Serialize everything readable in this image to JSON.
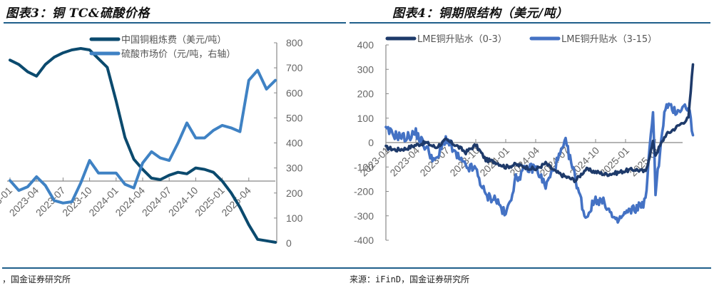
{
  "left": {
    "title": "图表3：铜 TC&硫酸价格",
    "source": "，国金证券研究所",
    "legend": [
      {
        "label": "中国铜粗炼费（美元/吨）",
        "color": "#0b4a6e"
      },
      {
        "label": "硫酸市场价（元/吨，右轴）",
        "color": "#3f82c4"
      }
    ]
  },
  "right": {
    "title": "图表4：铜期限结构（美元/吨）",
    "source": "来源：iFinD，国金证券研究所",
    "legend": [
      {
        "label": "LME铜升贴水（0-3）",
        "color": "#1e3a6a"
      },
      {
        "label": "LME铜升贴水（3-15）",
        "color": "#4472c4"
      }
    ]
  },
  "chart_data": [
    {
      "type": "line",
      "title": "图表3：铜 TC&硫酸价格",
      "xlabel": "",
      "categories": [
        "2023-01",
        "2023-04",
        "2023-07",
        "2023-10",
        "2024-01",
        "2024-04",
        "2024-07",
        "2024-10",
        "2025-01",
        "2025-04"
      ],
      "x_tick_labels": [
        "2023-01",
        "2023-04",
        "2023-07",
        "2023-10",
        "2024-01",
        "2024-04",
        "2024-07",
        "2024-10",
        "2025-01",
        "2025-04"
      ],
      "y2_ticks": [
        0,
        100,
        200,
        300,
        400,
        500,
        600,
        700,
        800
      ],
      "y2label": "元/吨",
      "y2lim": [
        0,
        800
      ],
      "ylim": [
        -45,
        100
      ],
      "left_axis_labels_visible": false,
      "grid": false,
      "legend_position": "top",
      "series": [
        {
          "name": "中国铜粗炼费（美元/吨）",
          "axis": "left",
          "color": "#0b4a6e",
          "x": [
            "2023-01",
            "2023-02",
            "2023-03",
            "2023-04",
            "2023-05",
            "2023-06",
            "2023-07",
            "2023-08",
            "2023-09",
            "2023-10",
            "2023-11",
            "2023-12",
            "2024-01",
            "2024-02",
            "2024-03",
            "2024-04",
            "2024-05",
            "2024-06",
            "2024-07",
            "2024-08",
            "2024-09",
            "2024-10",
            "2024-11",
            "2024-12",
            "2025-01",
            "2025-02",
            "2025-03",
            "2025-04",
            "2025-05",
            "2025-06",
            "2025-07"
          ],
          "values": [
            83,
            80,
            75,
            72,
            80,
            85,
            88,
            90,
            91,
            90,
            84,
            78,
            55,
            30,
            15,
            8,
            2,
            1,
            4,
            6,
            5,
            9,
            8,
            6,
            0,
            -8,
            -18,
            -30,
            -40,
            -41,
            -42
          ]
        },
        {
          "name": "硫酸市场价（元/吨，右轴）",
          "axis": "right",
          "color": "#3f82c4",
          "x": [
            "2023-01",
            "2023-02",
            "2023-03",
            "2023-04",
            "2023-05",
            "2023-06",
            "2023-07",
            "2023-08",
            "2023-09",
            "2023-10",
            "2023-11",
            "2023-12",
            "2024-01",
            "2024-02",
            "2024-03",
            "2024-04",
            "2024-05",
            "2024-06",
            "2024-07",
            "2024-08",
            "2024-09",
            "2024-10",
            "2024-11",
            "2024-12",
            "2025-01",
            "2025-02",
            "2025-03",
            "2025-04",
            "2025-05",
            "2025-06",
            "2025-07"
          ],
          "values": [
            250,
            210,
            225,
            265,
            230,
            170,
            160,
            165,
            240,
            330,
            280,
            280,
            280,
            235,
            220,
            320,
            365,
            340,
            330,
            400,
            480,
            420,
            420,
            450,
            470,
            460,
            445,
            650,
            690,
            615,
            650
          ]
        }
      ]
    },
    {
      "type": "line",
      "title": "图表4：铜期限结构（美元/吨）",
      "xlabel": "",
      "ylabel": "美元/吨",
      "categories": [
        "2023-01",
        "2023-04",
        "2023-07",
        "2023-10",
        "2024-01",
        "2024-04",
        "2024-07",
        "2024-10",
        "2025-01",
        "2025-04"
      ],
      "x_tick_labels": [
        "2023-01",
        "2023-04",
        "2023-07",
        "2023-10",
        "2024-01",
        "2024-04",
        "2024-07",
        "2024-10",
        "2025-01",
        "2025-04"
      ],
      "y_ticks": [
        -400,
        -300,
        -200,
        -100,
        0,
        100,
        200,
        300,
        400
      ],
      "ylim": [
        -400,
        400
      ],
      "grid": false,
      "legend_position": "top",
      "series": [
        {
          "name": "LME铜升贴水（0-3）",
          "color": "#1e3a6a",
          "x": [
            "2023-01",
            "2023-02",
            "2023-03",
            "2023-04",
            "2023-05",
            "2023-06",
            "2023-07",
            "2023-08",
            "2023-09",
            "2023-10",
            "2023-11",
            "2023-12",
            "2024-01",
            "2024-02",
            "2024-03",
            "2024-04",
            "2024-05",
            "2024-06",
            "2024-07",
            "2024-08",
            "2024-09",
            "2024-10",
            "2024-11",
            "2024-12",
            "2025-01",
            "2025-02",
            "2025-03",
            "2025-03b",
            "2025-04",
            "2025-05",
            "2025-06",
            "2025-07a",
            "2025-07b"
          ],
          "values": [
            -20,
            -30,
            -25,
            -10,
            0,
            -20,
            10,
            -10,
            -40,
            -10,
            -70,
            -80,
            -100,
            -90,
            -100,
            -110,
            -85,
            -120,
            -140,
            -155,
            -110,
            -120,
            -130,
            -125,
            -115,
            -110,
            -120,
            0,
            -50,
            30,
            60,
            100,
            320
          ]
        },
        {
          "name": "LME铜升贴水（3-15）",
          "color": "#4472c4",
          "x": [
            "2023-01",
            "2023-02",
            "2023-03",
            "2023-04",
            "2023-05",
            "2023-06",
            "2023-07",
            "2023-08",
            "2023-09",
            "2023-10",
            "2023-11",
            "2023-12",
            "2024-01",
            "2024-02",
            "2024-03",
            "2024-04",
            "2024-05",
            "2024-06",
            "2024-07",
            "2024-08",
            "2024-09",
            "2024-10",
            "2024-11",
            "2024-12",
            "2025-01",
            "2025-02",
            "2025-03",
            "2025-03b",
            "2025-04",
            "2025-05",
            "2025-06",
            "2025-07a",
            "2025-07b"
          ],
          "values": [
            50,
            30,
            20,
            40,
            -20,
            -80,
            20,
            -50,
            -100,
            -110,
            -220,
            -230,
            -300,
            -150,
            -110,
            -100,
            -180,
            -90,
            0,
            -150,
            -310,
            -230,
            -250,
            -330,
            -290,
            -270,
            -240,
            140,
            -200,
            150,
            130,
            150,
            30
          ]
        }
      ]
    }
  ]
}
